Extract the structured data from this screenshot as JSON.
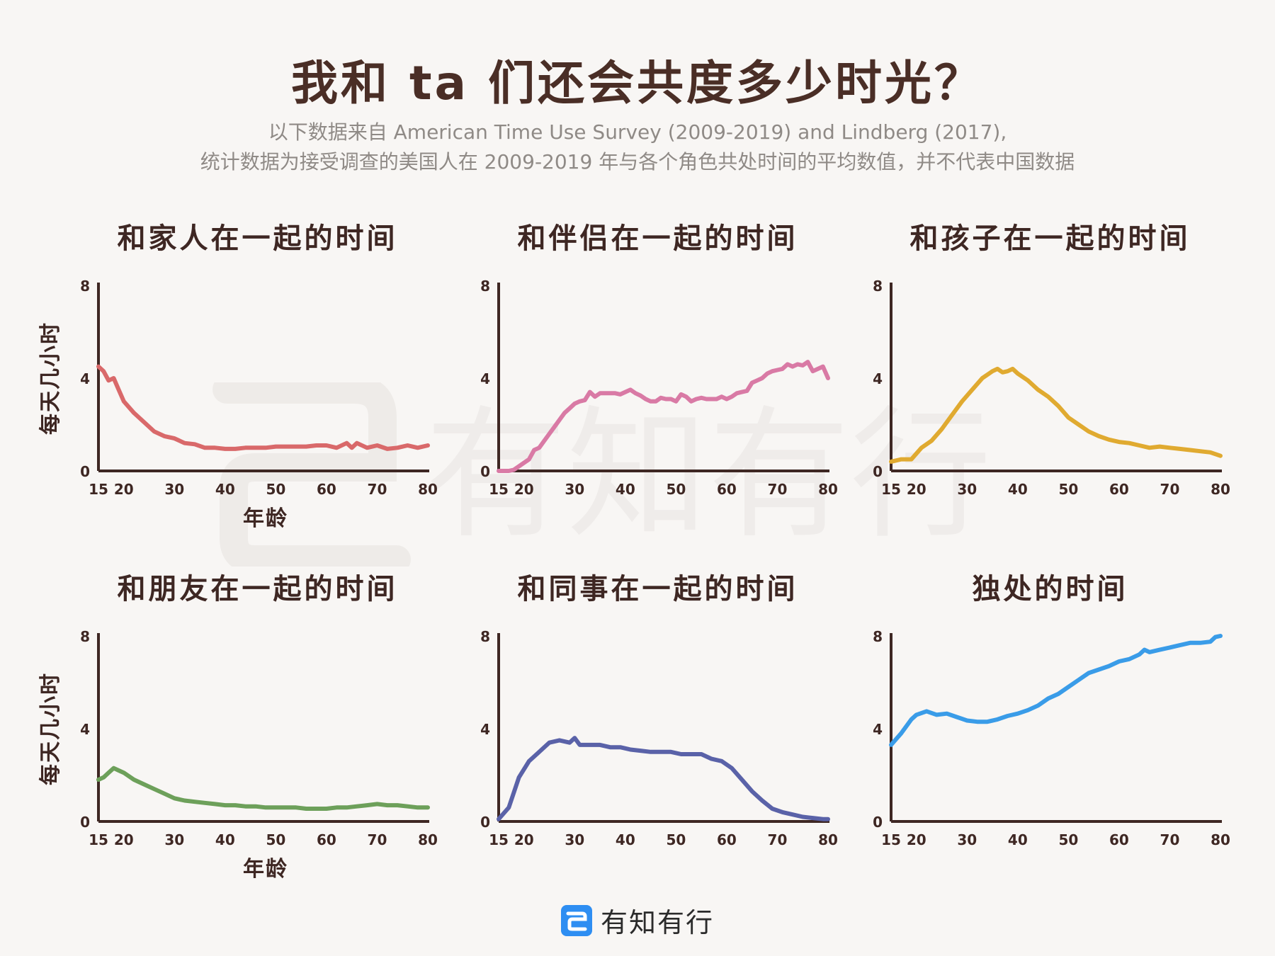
{
  "title": "我和 ta 们还会共度多少时光？",
  "subtitle": {
    "line1": "以下数据来自 American Time Use Survey (2009-2019) and Lindberg (2017),",
    "line2": "统计数据为接受调查的美国人在 2009-2019 年与各个角色共处时间的平均数值，并不代表中国数据"
  },
  "watermark_text": "有知有行",
  "footer": {
    "brand": "有知有行"
  },
  "axis": {
    "ylabel": "每天几小时",
    "xlabel": "年龄",
    "x_ticks": [
      15,
      20,
      30,
      40,
      50,
      60,
      70,
      80
    ],
    "y_ticks": [
      0,
      4,
      8
    ],
    "xlim": [
      15,
      80
    ],
    "ylim": [
      0,
      8
    ]
  },
  "chart_data": [
    {
      "type": "line",
      "title": "和家人在一起的时间",
      "color": "#d9696a",
      "x": [
        15,
        16,
        17,
        18,
        19,
        20,
        22,
        24,
        26,
        28,
        30,
        32,
        34,
        36,
        38,
        40,
        42,
        44,
        46,
        48,
        50,
        52,
        54,
        56,
        58,
        60,
        62,
        64,
        65,
        66,
        68,
        70,
        72,
        74,
        76,
        78,
        80
      ],
      "y": [
        4.5,
        4.3,
        3.9,
        4.0,
        3.5,
        3.0,
        2.5,
        2.1,
        1.7,
        1.5,
        1.4,
        1.2,
        1.15,
        1.0,
        1.0,
        0.95,
        0.95,
        1.0,
        1.0,
        1.0,
        1.05,
        1.05,
        1.05,
        1.05,
        1.1,
        1.1,
        1.0,
        1.2,
        1.0,
        1.2,
        1.0,
        1.1,
        0.95,
        1.0,
        1.1,
        1.0,
        1.1
      ]
    },
    {
      "type": "line",
      "title": "和伴侣在一起的时间",
      "color": "#d97aa5",
      "x": [
        15,
        17,
        18,
        19,
        20,
        21,
        22,
        23,
        24,
        25,
        26,
        27,
        28,
        29,
        30,
        31,
        32,
        33,
        34,
        35,
        36,
        37,
        38,
        39,
        40,
        41,
        42,
        43,
        44,
        45,
        46,
        47,
        48,
        49,
        50,
        51,
        52,
        53,
        54,
        55,
        56,
        57,
        58,
        59,
        60,
        61,
        62,
        63,
        64,
        65,
        66,
        67,
        68,
        69,
        70,
        71,
        72,
        73,
        74,
        75,
        76,
        77,
        78,
        79,
        80
      ],
      "y": [
        0.0,
        0.0,
        0.05,
        0.2,
        0.35,
        0.5,
        0.9,
        1.0,
        1.3,
        1.6,
        1.9,
        2.2,
        2.5,
        2.7,
        2.9,
        3.0,
        3.05,
        3.4,
        3.2,
        3.35,
        3.35,
        3.35,
        3.35,
        3.3,
        3.4,
        3.5,
        3.35,
        3.25,
        3.1,
        3.0,
        3.0,
        3.15,
        3.1,
        3.1,
        3.0,
        3.3,
        3.2,
        3.0,
        3.1,
        3.15,
        3.1,
        3.1,
        3.1,
        3.2,
        3.1,
        3.2,
        3.35,
        3.4,
        3.45,
        3.8,
        3.9,
        4.0,
        4.2,
        4.3,
        4.35,
        4.4,
        4.6,
        4.5,
        4.6,
        4.55,
        4.7,
        4.3,
        4.4,
        4.5,
        4.0
      ]
    },
    {
      "type": "line",
      "title": "和孩子在一起的时间",
      "color": "#e0aa30",
      "x": [
        15,
        17,
        19,
        21,
        23,
        25,
        27,
        29,
        31,
        33,
        35,
        36,
        37,
        38,
        39,
        40,
        42,
        44,
        46,
        48,
        50,
        52,
        54,
        56,
        58,
        60,
        62,
        64,
        66,
        68,
        70,
        72,
        74,
        76,
        78,
        80
      ],
      "y": [
        0.4,
        0.5,
        0.5,
        1.0,
        1.3,
        1.8,
        2.4,
        3.0,
        3.5,
        4.0,
        4.3,
        4.4,
        4.25,
        4.3,
        4.4,
        4.2,
        3.9,
        3.5,
        3.2,
        2.8,
        2.3,
        2.0,
        1.7,
        1.5,
        1.35,
        1.25,
        1.2,
        1.1,
        1.0,
        1.05,
        1.0,
        0.95,
        0.9,
        0.85,
        0.8,
        0.65
      ]
    },
    {
      "type": "line",
      "title": "和朋友在一起的时间",
      "color": "#6da05a",
      "x": [
        15,
        16,
        17,
        18,
        19,
        20,
        22,
        24,
        26,
        28,
        30,
        32,
        34,
        36,
        38,
        40,
        42,
        44,
        46,
        48,
        50,
        52,
        54,
        56,
        58,
        60,
        62,
        64,
        66,
        68,
        70,
        72,
        74,
        76,
        78,
        80
      ],
      "y": [
        1.8,
        1.9,
        2.1,
        2.3,
        2.2,
        2.1,
        1.8,
        1.6,
        1.4,
        1.2,
        1.0,
        0.9,
        0.85,
        0.8,
        0.75,
        0.7,
        0.7,
        0.65,
        0.65,
        0.6,
        0.6,
        0.6,
        0.6,
        0.55,
        0.55,
        0.55,
        0.6,
        0.6,
        0.65,
        0.7,
        0.75,
        0.7,
        0.7,
        0.65,
        0.6,
        0.6
      ]
    },
    {
      "type": "line",
      "title": "和同事在一起的时间",
      "color": "#5a62a8",
      "x": [
        15,
        17,
        19,
        21,
        23,
        25,
        27,
        29,
        30,
        31,
        33,
        35,
        37,
        39,
        41,
        43,
        45,
        47,
        49,
        51,
        53,
        55,
        57,
        59,
        61,
        63,
        65,
        67,
        69,
        71,
        73,
        75,
        77,
        79,
        80
      ],
      "y": [
        0.1,
        0.6,
        1.9,
        2.6,
        3.0,
        3.4,
        3.5,
        3.4,
        3.6,
        3.3,
        3.3,
        3.3,
        3.2,
        3.2,
        3.1,
        3.05,
        3.0,
        3.0,
        3.0,
        2.9,
        2.9,
        2.9,
        2.7,
        2.6,
        2.3,
        1.8,
        1.3,
        0.9,
        0.55,
        0.4,
        0.3,
        0.2,
        0.15,
        0.1,
        0.1
      ]
    },
    {
      "type": "line",
      "title": "独处的时间",
      "color": "#3a9ce8",
      "x": [
        15,
        17,
        19,
        20,
        22,
        24,
        26,
        28,
        30,
        32,
        34,
        36,
        38,
        40,
        42,
        44,
        46,
        48,
        50,
        52,
        54,
        56,
        58,
        60,
        62,
        64,
        65,
        66,
        68,
        70,
        72,
        74,
        76,
        78,
        79,
        80
      ],
      "y": [
        3.3,
        3.8,
        4.4,
        4.6,
        4.75,
        4.6,
        4.65,
        4.5,
        4.35,
        4.3,
        4.3,
        4.4,
        4.55,
        4.65,
        4.8,
        5.0,
        5.3,
        5.5,
        5.8,
        6.1,
        6.4,
        6.55,
        6.7,
        6.9,
        7.0,
        7.2,
        7.4,
        7.3,
        7.4,
        7.5,
        7.6,
        7.7,
        7.7,
        7.75,
        7.95,
        8.0
      ]
    }
  ]
}
